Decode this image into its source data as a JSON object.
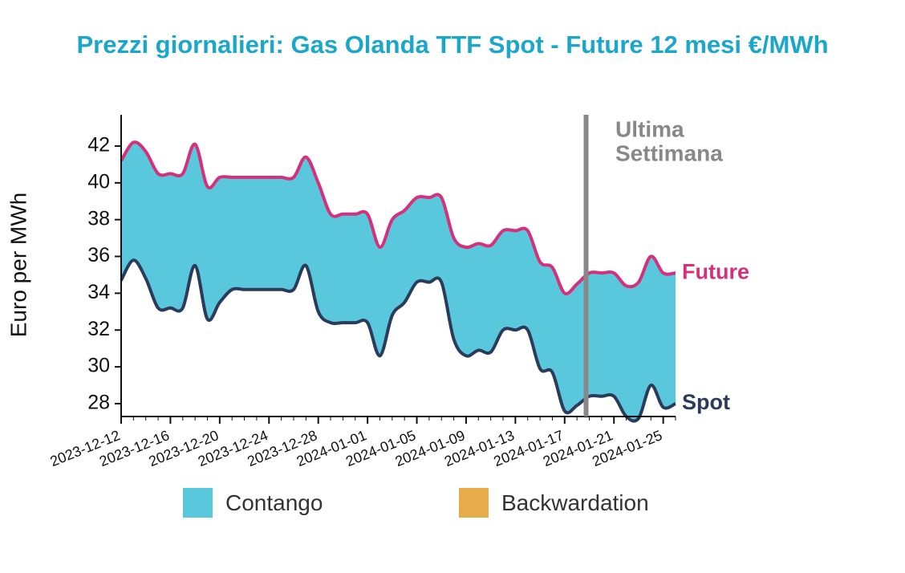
{
  "chart_data": {
    "type": "area",
    "title": "Prezzi giornalieri: Gas Olanda TTF Spot - Future 12 mesi €/MWh",
    "ylabel": "Euro per MWh",
    "xlabel": "",
    "ylim": [
      27.3,
      43.7
    ],
    "yticks": [
      28,
      30,
      32,
      34,
      36,
      38,
      40,
      42
    ],
    "xticks": [
      "2023-12-12",
      "2023-12-16",
      "2023-12-20",
      "2023-12-24",
      "2023-12-28",
      "2024-01-01",
      "2024-01-05",
      "2024-01-09",
      "2024-01-13",
      "2024-01-17",
      "2024-01-21",
      "2024-01-25"
    ],
    "x": [
      "2023-12-12",
      "2023-12-13",
      "2023-12-14",
      "2023-12-15",
      "2023-12-16",
      "2023-12-17",
      "2023-12-18",
      "2023-12-19",
      "2023-12-20",
      "2023-12-21",
      "2023-12-22",
      "2023-12-23",
      "2023-12-24",
      "2023-12-25",
      "2023-12-26",
      "2023-12-27",
      "2023-12-28",
      "2023-12-29",
      "2023-12-30",
      "2023-12-31",
      "2024-01-01",
      "2024-01-02",
      "2024-01-03",
      "2024-01-04",
      "2024-01-05",
      "2024-01-06",
      "2024-01-07",
      "2024-01-08",
      "2024-01-09",
      "2024-01-10",
      "2024-01-11",
      "2024-01-12",
      "2024-01-13",
      "2024-01-14",
      "2024-01-15",
      "2024-01-16",
      "2024-01-17",
      "2024-01-18",
      "2024-01-19",
      "2024-01-20",
      "2024-01-21",
      "2024-01-22",
      "2024-01-23",
      "2024-01-24",
      "2024-01-25",
      "2024-01-26"
    ],
    "series": [
      {
        "name": "Future",
        "color": "#d6307a",
        "values": [
          41.2,
          42.2,
          41.7,
          40.5,
          40.5,
          40.5,
          42.1,
          39.8,
          40.3,
          40.3,
          40.3,
          40.3,
          40.3,
          40.3,
          40.3,
          41.4,
          40.0,
          38.3,
          38.3,
          38.3,
          38.3,
          36.5,
          38.0,
          38.5,
          39.2,
          39.2,
          39.2,
          37.0,
          36.5,
          36.7,
          36.6,
          37.4,
          37.4,
          37.4,
          35.7,
          35.4,
          34.0,
          34.5,
          35.1,
          35.1,
          35.1,
          34.4,
          34.6,
          36.0,
          35.1,
          35.1
        ]
      },
      {
        "name": "Spot",
        "color": "#2b3b5c",
        "values": [
          34.7,
          35.8,
          34.8,
          33.2,
          33.2,
          33.2,
          35.5,
          32.6,
          33.5,
          34.2,
          34.2,
          34.2,
          34.2,
          34.2,
          34.2,
          35.5,
          33.0,
          32.4,
          32.4,
          32.4,
          32.4,
          30.6,
          32.8,
          33.5,
          34.6,
          34.6,
          34.6,
          31.5,
          30.6,
          30.9,
          30.8,
          32.0,
          32.0,
          32.0,
          29.9,
          29.7,
          27.6,
          27.9,
          28.4,
          28.4,
          28.4,
          27.3,
          27.2,
          29.0,
          27.8,
          28.0
        ]
      }
    ],
    "fill_colors": {
      "contango": "#5ac8dc",
      "backwardation": "#e8ab4a"
    },
    "marker_color": "#888888",
    "marker_x": "2024-01-19",
    "annotations": {
      "marker_label": [
        "Ultima",
        "Settimana"
      ]
    },
    "legend": {
      "position": "bottom",
      "items": [
        {
          "label": "Contango",
          "color": "#5ac8dc"
        },
        {
          "label": "Backwardation",
          "color": "#e8ab4a"
        }
      ]
    }
  }
}
